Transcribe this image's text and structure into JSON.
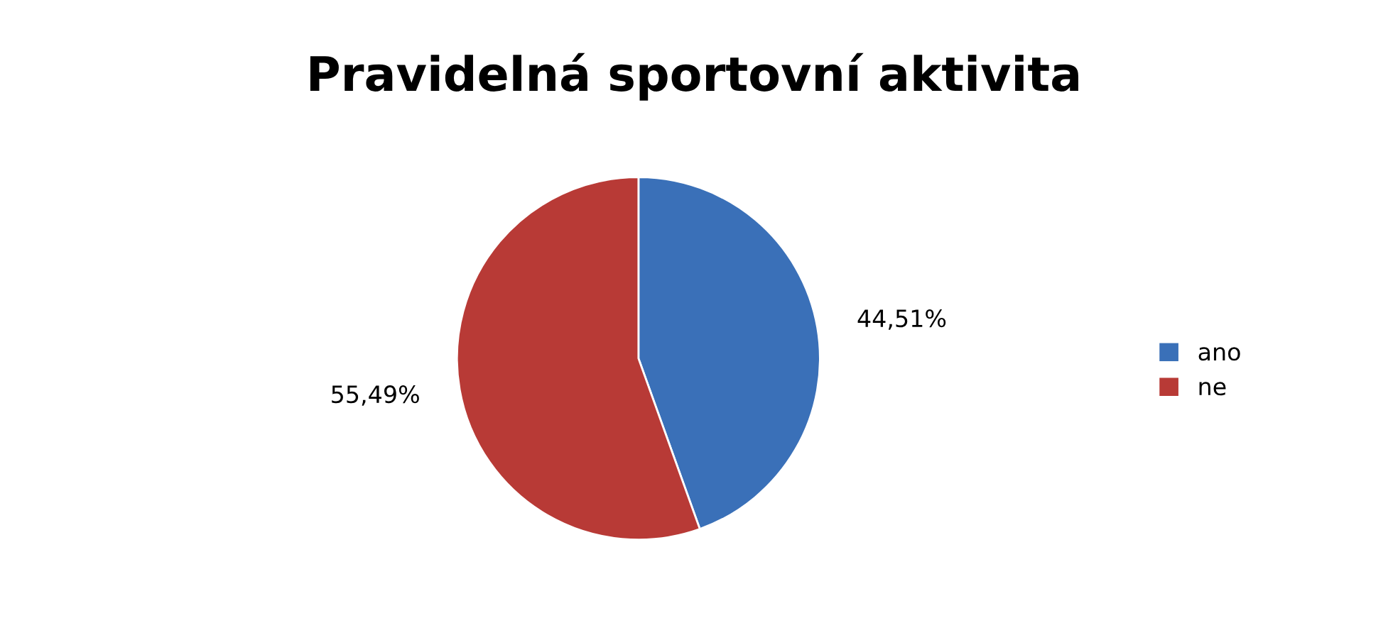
{
  "chart_data": {
    "type": "pie",
    "title": "Pravidelná sportovní aktivita",
    "categories": [
      "ano",
      "ne"
    ],
    "values": [
      44.51,
      55.49
    ],
    "value_labels": [
      "44,51%",
      "55,49%"
    ],
    "colors": [
      "#3a70b8",
      "#b83a36"
    ],
    "legend": "right"
  }
}
